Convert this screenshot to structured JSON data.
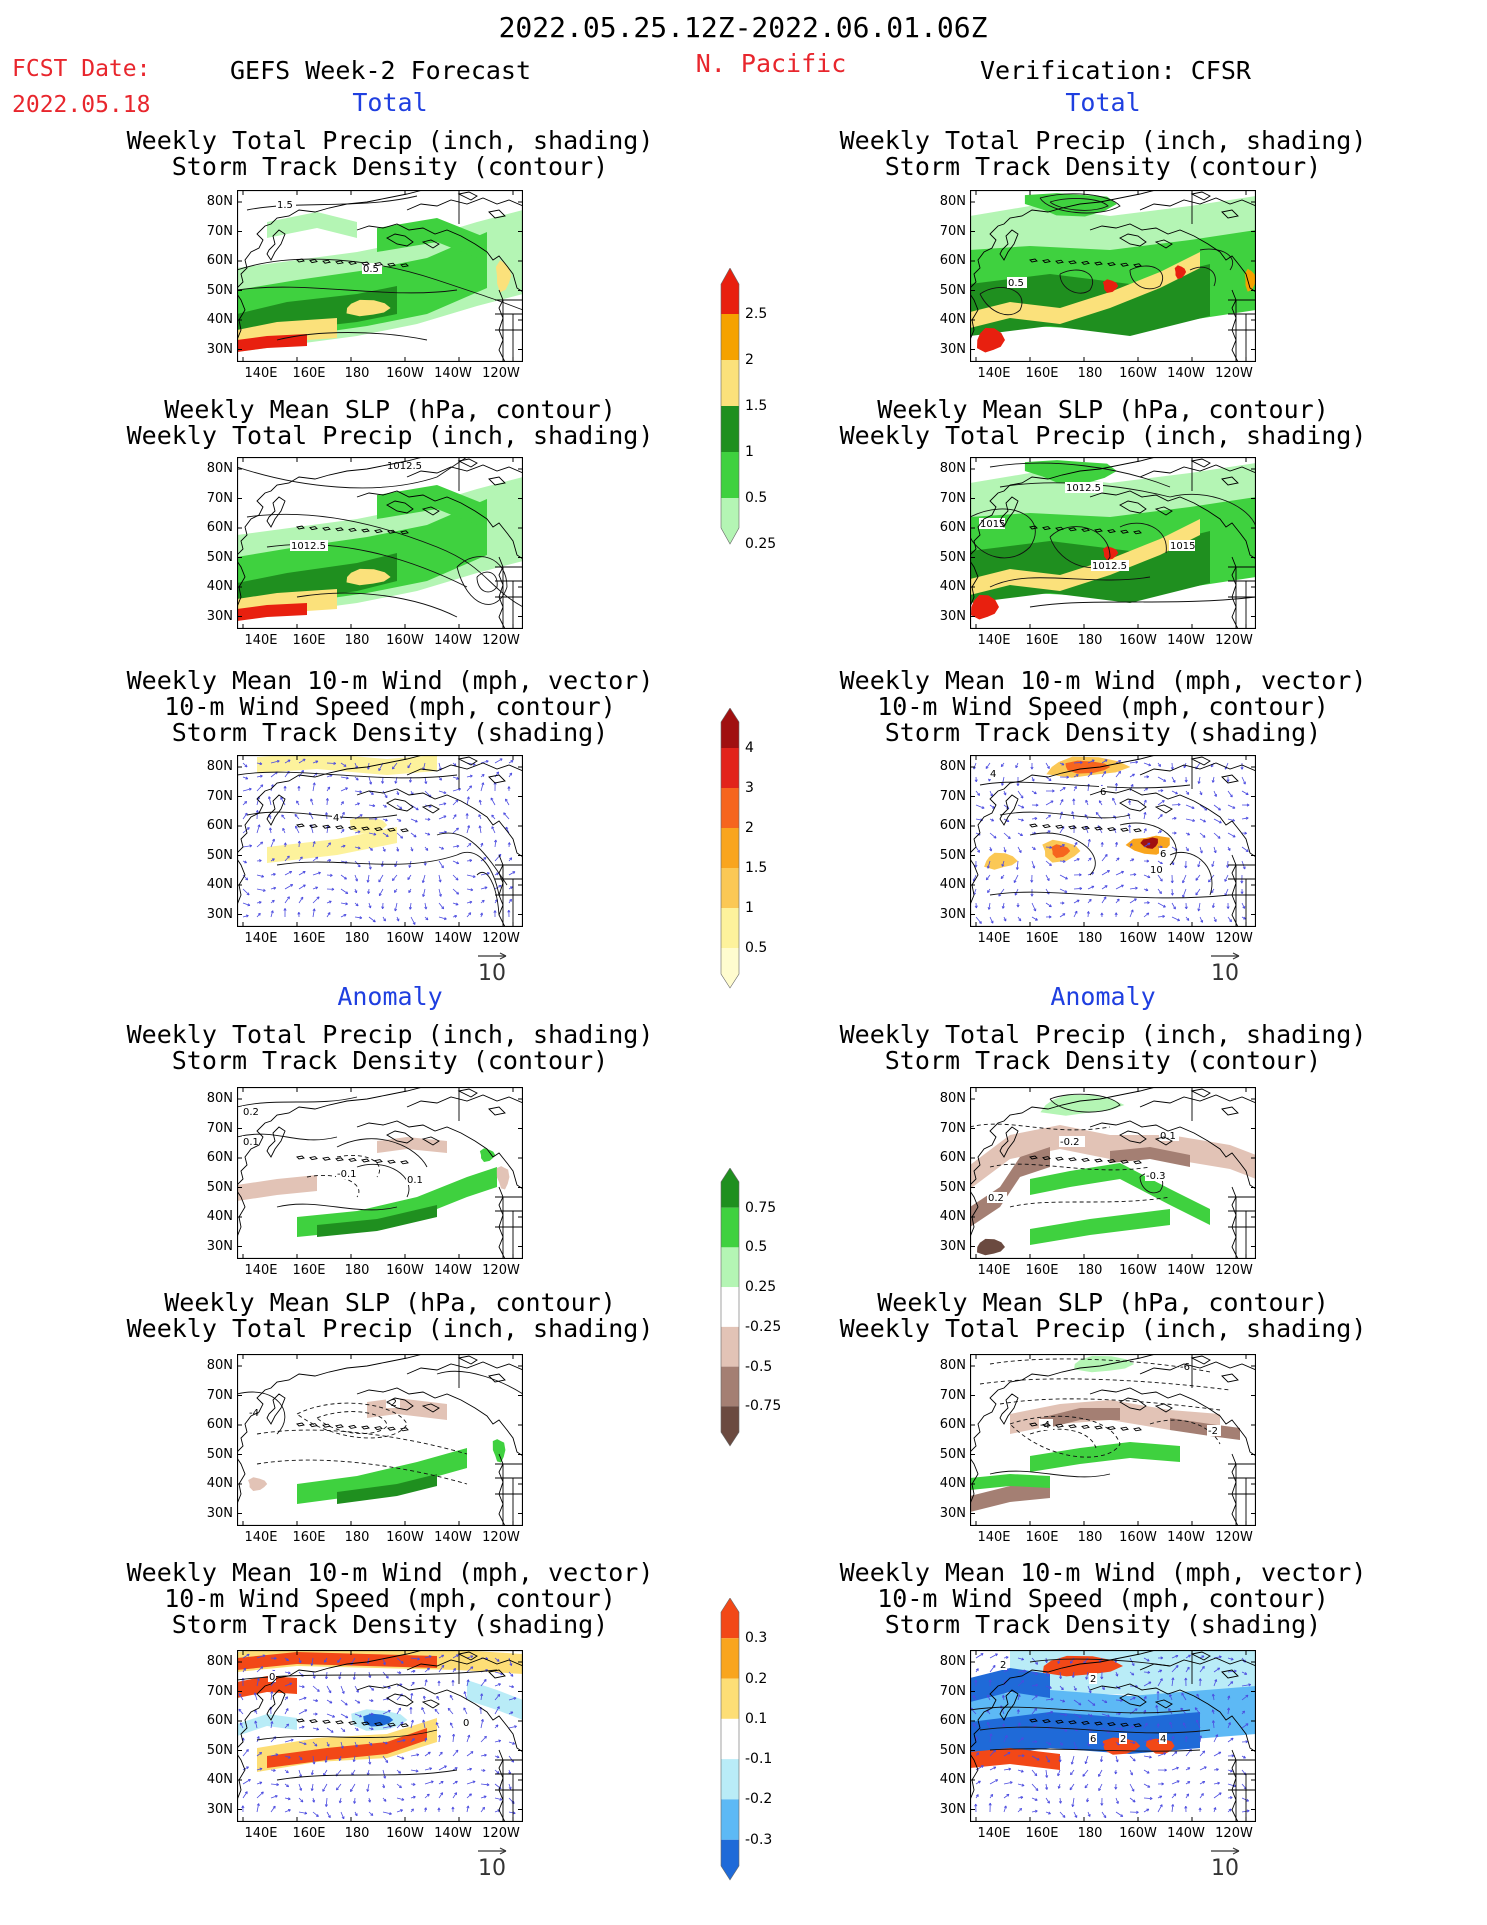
{
  "header": {
    "period": "2022.05.25.12Z-2022.06.01.06Z",
    "fcst_label": "FCST Date:",
    "fcst_date": "2022.05.18",
    "model_title": "GEFS Week-2 Forecast",
    "region": "N. Pacific",
    "verification": "Verification: CFSR"
  },
  "sections": {
    "total": "Total",
    "anomaly": "Anomaly"
  },
  "panel_titles": {
    "precip_storm": [
      "Weekly Total Precip (inch, shading)",
      "Storm Track Density (contour)"
    ],
    "slp_precip": [
      "Weekly Mean SLP (hPa, contour)",
      "Weekly Total Precip (inch, shading)"
    ],
    "wind_storm": [
      "Weekly Mean 10-m Wind (mph, vector)",
      "10-m Wind Speed (mph, contour)",
      "Storm Track Density (shading)"
    ]
  },
  "axes": {
    "lat_labels": [
      "80N",
      "70N",
      "60N",
      "50N",
      "40N",
      "30N"
    ],
    "lon_labels": [
      "140E",
      "160E",
      "180",
      "160W",
      "140W",
      "120W"
    ]
  },
  "vector_reference": "10",
  "contour_labels": {
    "fc_tot_precip": [
      "0.5",
      "1.5"
    ],
    "vf_tot_precip": [
      "0.5"
    ],
    "fc_tot_slp": [
      "1012.5",
      "1012.5"
    ],
    "vf_tot_slp": [
      "1012.5",
      "1015",
      "1015",
      "1012.5"
    ],
    "fc_tot_wind": [
      "4"
    ],
    "vf_tot_wind": [
      "4",
      "6",
      "6",
      "10"
    ],
    "fc_an_precip": [
      "0.2",
      "0.1",
      "-0.1",
      "0.1"
    ],
    "vf_an_precip": [
      "-0.2",
      "0.1",
      "-0.3",
      "0.2"
    ],
    "fc_an_slp": [
      "-2",
      "-4"
    ],
    "vf_an_slp": [
      "-6",
      "-4",
      "-2"
    ],
    "fc_an_wind": [
      "0",
      "0"
    ],
    "vf_an_wind": [
      "2",
      "2",
      "6",
      "2",
      "4"
    ]
  },
  "colorbars": {
    "total_precip": {
      "labels": [
        "2.5",
        "2",
        "1.5",
        "1",
        "0.5",
        "0.25"
      ],
      "colors": [
        "#e8200f",
        "#f5a200",
        "#fbe17b",
        "#1f8f1f",
        "#3fd13f",
        "#b4f5b4"
      ]
    },
    "total_storm": {
      "labels": [
        "4",
        "3",
        "2",
        "1.5",
        "1",
        "0.5"
      ],
      "colors": [
        "#a01010",
        "#e2231b",
        "#f6651e",
        "#f9a51e",
        "#fbc855",
        "#fdf29c",
        "#fffccf"
      ]
    },
    "anom_precip": {
      "labels": [
        "0.75",
        "0.5",
        "0.25",
        "-0.25",
        "-0.5",
        "-0.75"
      ],
      "colors": [
        "#1f8f1f",
        "#3fd13f",
        "#b4f5b4",
        "#ffffff",
        "#e2c3b6",
        "#a47f73",
        "#6b4a40"
      ]
    },
    "anom_storm": {
      "labels": [
        "0.3",
        "0.2",
        "0.1",
        "-0.1",
        "-0.2",
        "-0.3"
      ],
      "colors": [
        "#f24817",
        "#f9a51e",
        "#fdde76",
        "#ffffff",
        "#b9ecf7",
        "#5db9f5",
        "#1f6ad8"
      ]
    }
  }
}
